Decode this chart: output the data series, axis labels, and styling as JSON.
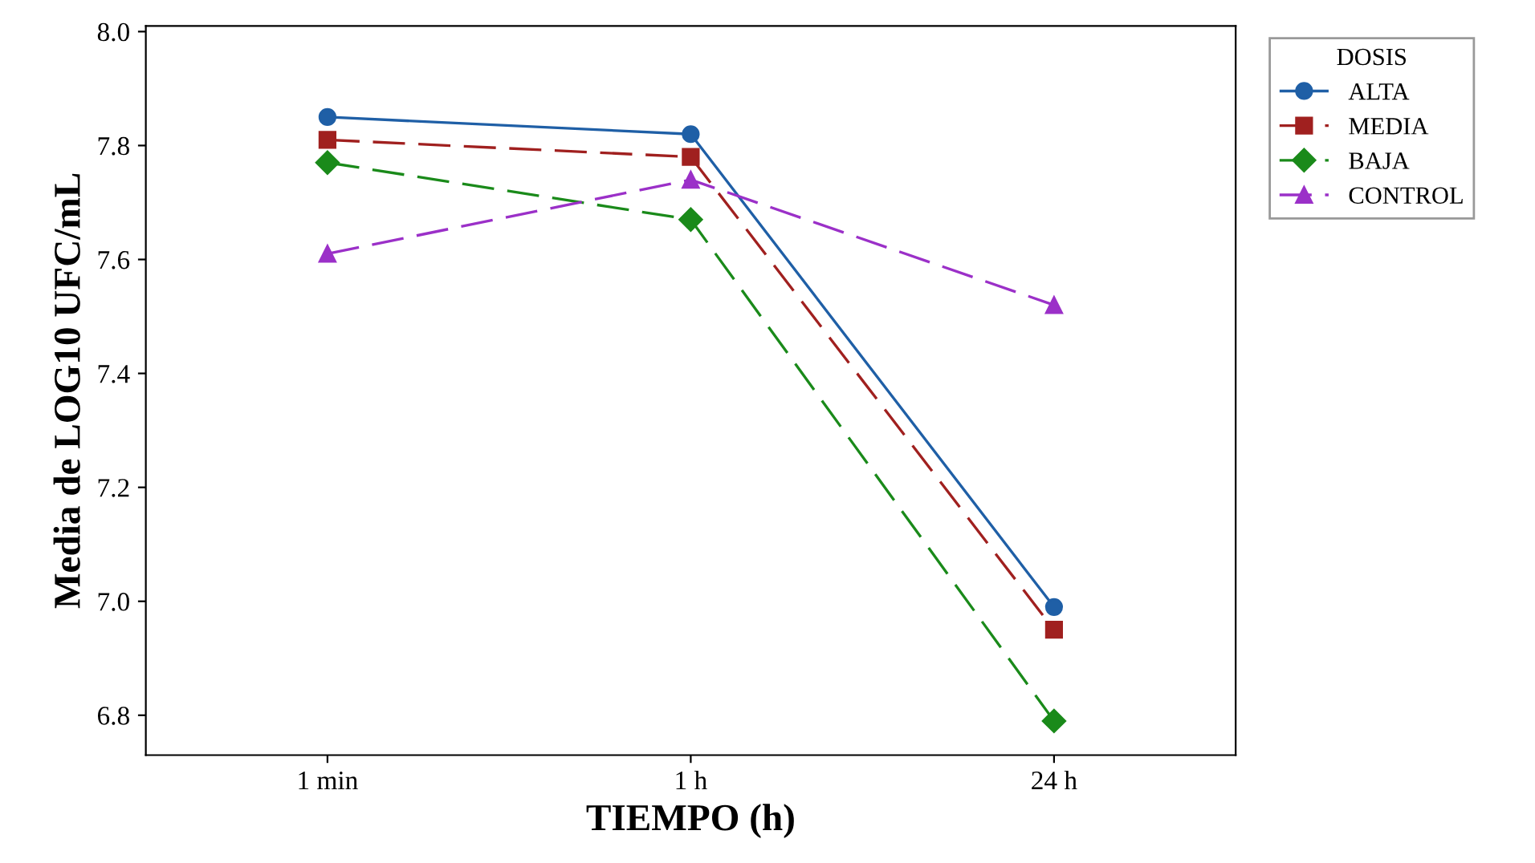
{
  "chart_data": {
    "type": "line",
    "xlabel": "TIEMPO (h)",
    "ylabel": "Media de LOG10 UFC/mL",
    "legend_title": "DOSIS",
    "legend": "top right",
    "grid": false,
    "categories": [
      "1 min",
      "1 h",
      "24 h"
    ],
    "ylim": [
      6.73,
      8.01
    ],
    "yticks": [
      6.8,
      {
        "value": 7,
        "label": "7.0"
      },
      7.2,
      7.4,
      7.6,
      7.8,
      {
        "value": 8,
        "label": "8.0"
      }
    ],
    "series": [
      {
        "name": "ALTA",
        "color": "#1f5fa6",
        "marker": "circle",
        "line_style": "solid",
        "values": [
          7.85,
          7.82,
          6.99
        ]
      },
      {
        "name": "MEDIA",
        "color": "#a0201f",
        "marker": "square",
        "line_style": "dashed",
        "values": [
          7.81,
          7.78,
          6.95
        ]
      },
      {
        "name": "BAJA",
        "color": "#1a8a1a",
        "marker": "diamond",
        "line_style": "dashed",
        "values": [
          7.77,
          7.67,
          6.79
        ]
      },
      {
        "name": "CONTROL",
        "color": "#9b30c8",
        "marker": "triangle",
        "line_style": "dashed",
        "values": [
          7.61,
          7.74,
          7.52
        ]
      }
    ]
  }
}
